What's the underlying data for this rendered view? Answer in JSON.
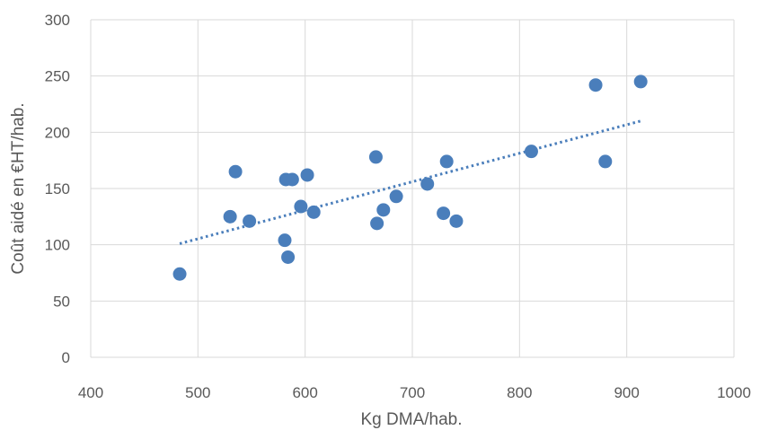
{
  "chart_data": {
    "type": "scatter",
    "title": "",
    "xlabel": "Kg DMA/hab.",
    "ylabel": "Coût aidé en €HT/hab.",
    "xlim": [
      400,
      1000
    ],
    "ylim": [
      0,
      300
    ],
    "x_ticks": [
      400,
      500,
      600,
      700,
      800,
      900,
      1000
    ],
    "y_ticks": [
      0,
      50,
      100,
      150,
      200,
      250,
      300
    ],
    "grid": true,
    "legend": "none",
    "point_color": "#4a7ebb",
    "trendline": {
      "type": "linear",
      "style": "dotted",
      "color": "#4a7ebb",
      "x": [
        483,
        913
      ],
      "y": [
        101,
        210
      ]
    },
    "points": [
      {
        "x": 483,
        "y": 74
      },
      {
        "x": 530,
        "y": 125
      },
      {
        "x": 535,
        "y": 165
      },
      {
        "x": 548,
        "y": 121
      },
      {
        "x": 581,
        "y": 104
      },
      {
        "x": 582,
        "y": 158
      },
      {
        "x": 584,
        "y": 89
      },
      {
        "x": 588,
        "y": 158
      },
      {
        "x": 596,
        "y": 134
      },
      {
        "x": 602,
        "y": 162
      },
      {
        "x": 608,
        "y": 129
      },
      {
        "x": 666,
        "y": 178
      },
      {
        "x": 667,
        "y": 119
      },
      {
        "x": 673,
        "y": 131
      },
      {
        "x": 685,
        "y": 143
      },
      {
        "x": 714,
        "y": 154
      },
      {
        "x": 729,
        "y": 128
      },
      {
        "x": 732,
        "y": 174
      },
      {
        "x": 741,
        "y": 121
      },
      {
        "x": 811,
        "y": 183
      },
      {
        "x": 871,
        "y": 242
      },
      {
        "x": 880,
        "y": 174
      },
      {
        "x": 913,
        "y": 245
      }
    ]
  }
}
